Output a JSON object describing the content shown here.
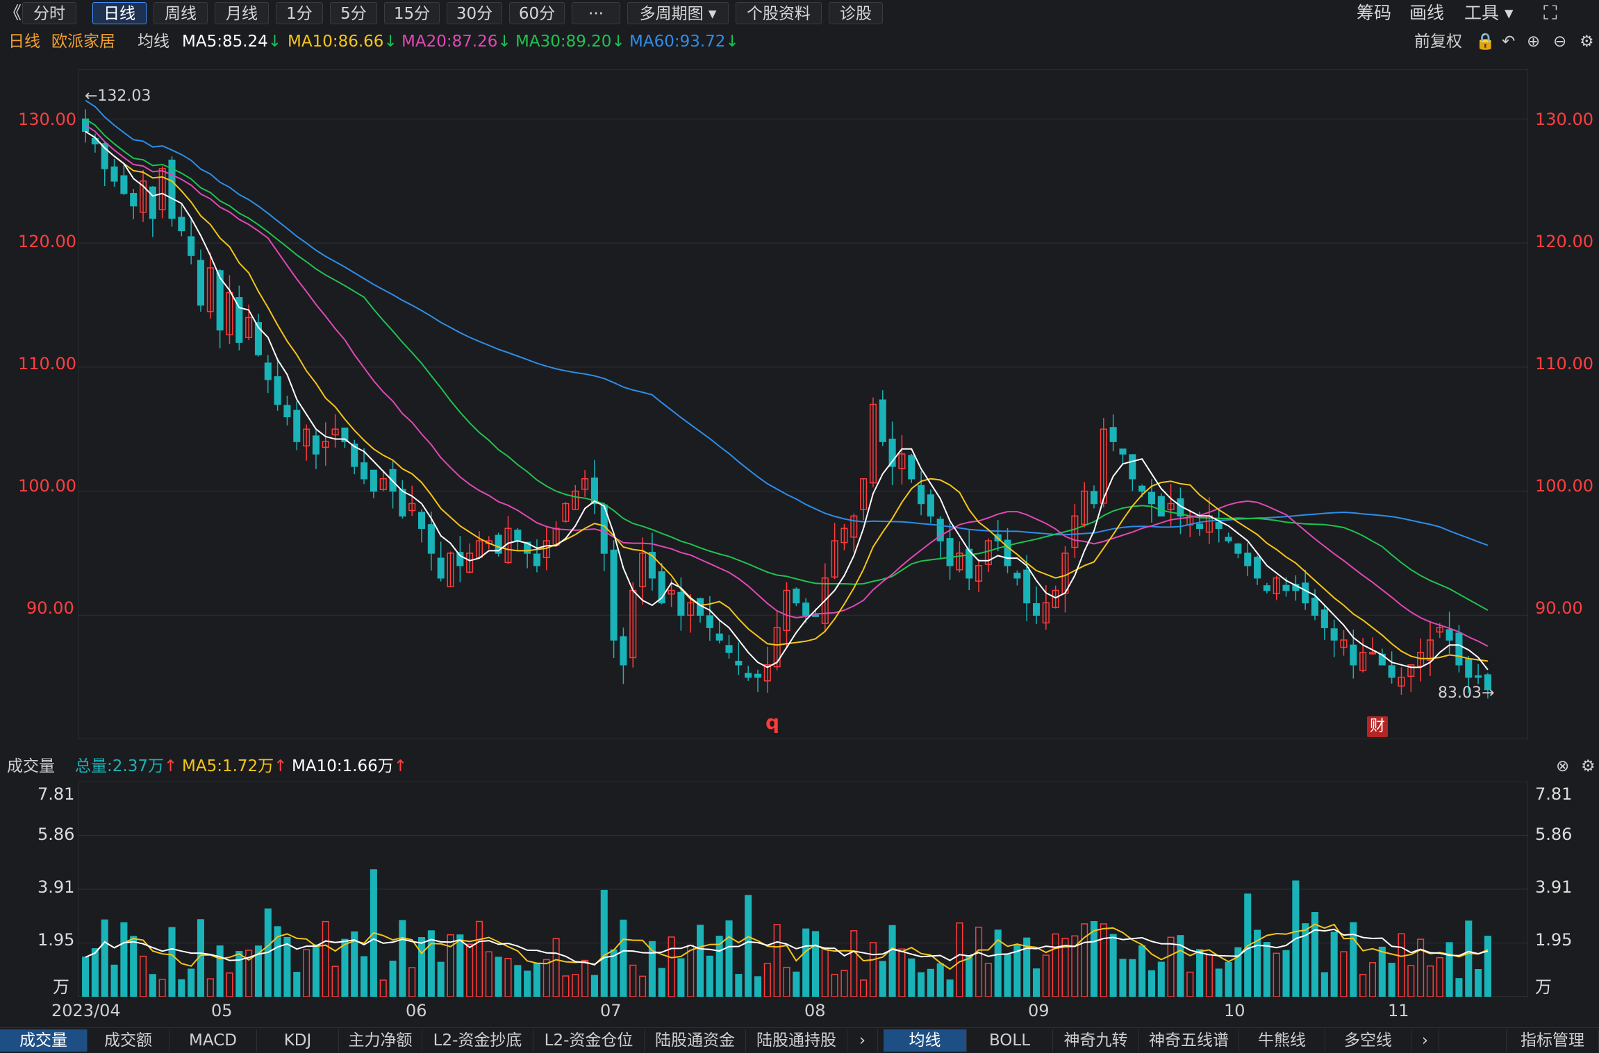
{
  "toolbar": {
    "back": "《",
    "periods": [
      "分时",
      "日线",
      "周线",
      "月线",
      "1分",
      "5分",
      "15分",
      "30分",
      "60分",
      "···",
      "多周期图",
      "个股资料",
      "诊股"
    ],
    "active_period": "日线",
    "right": [
      "筹码",
      "画线",
      "工具"
    ]
  },
  "info": {
    "period": "日线",
    "stock_name": "欧派家居",
    "ma_label": "均线",
    "ma5": "MA5:85.24",
    "ma10": "MA10:86.66",
    "ma20": "MA20:87.26",
    "ma30": "MA30:89.20",
    "ma60": "MA60:93.72",
    "adjust": "前复权"
  },
  "price_axis": {
    "ticks": [
      "130.00",
      "120.00",
      "110.00",
      "100.00",
      "90.00"
    ],
    "high_label": "←132.03",
    "low_label": "83.03→"
  },
  "markers": {
    "q": "q",
    "cai": "财"
  },
  "volume_info": {
    "label": "成交量",
    "total": "总量:2.37万",
    "ma5": "MA5:1.72万",
    "ma10": "MA10:1.66万"
  },
  "volume_axis": {
    "ticks": [
      "7.81",
      "5.86",
      "3.91",
      "1.95",
      "万"
    ]
  },
  "x_axis": {
    "labels": [
      "2023/04",
      "05",
      "06",
      "07",
      "08",
      "09",
      "10",
      "11"
    ]
  },
  "bottom_tabs_left": [
    "成交量",
    "成交额",
    "MACD",
    "KDJ",
    "主力净额",
    "L2-资金抄底",
    "L2-资金仓位",
    "陆股通资金",
    "陆股通持股"
  ],
  "bottom_tabs_right": [
    "均线",
    "BOLL",
    "神奇九转",
    "神奇五线谱",
    "牛熊线",
    "多空线"
  ],
  "bottom_right_button": "指标管理",
  "colors": {
    "up": "#ff3b3b",
    "down": "#19b3b8",
    "ma5": "#ffffff",
    "ma10": "#f5c518",
    "ma20": "#e048b5",
    "ma30": "#1fc24f",
    "ma60": "#2d8ee8"
  },
  "chart_data": {
    "type": "candlestick",
    "y_range": [
      80,
      134
    ],
    "closes": [
      129,
      128,
      126,
      125,
      124,
      123,
      125,
      122,
      126,
      122,
      121,
      119,
      115,
      118,
      113,
      116,
      112,
      114,
      111,
      109,
      107,
      106,
      104,
      105,
      103,
      104,
      105,
      104,
      102,
      101,
      100,
      101,
      100,
      98,
      99,
      97,
      95,
      93,
      95,
      94,
      95,
      96,
      96,
      95,
      97,
      96,
      95,
      94,
      96,
      97,
      99,
      100,
      101,
      99,
      95,
      88,
      86,
      92,
      95,
      93,
      91,
      92,
      90,
      91,
      90,
      89,
      88,
      87,
      86,
      85,
      85,
      86,
      89,
      92,
      91,
      90,
      90,
      93,
      96,
      97,
      98,
      101,
      107,
      104,
      102,
      103,
      101,
      99,
      98,
      96,
      94,
      95,
      93,
      94,
      96,
      96,
      94,
      93,
      91,
      90,
      91,
      92,
      95,
      98,
      100,
      99,
      105,
      104,
      103,
      101,
      100,
      99,
      98,
      99,
      98,
      98,
      97,
      98,
      97,
      96,
      95,
      94,
      93,
      92,
      93,
      92,
      92,
      91,
      90,
      89,
      88,
      88,
      86,
      87,
      87,
      86,
      85,
      85,
      86,
      87,
      88,
      89,
      88,
      86,
      85,
      85,
      84
    ]
  }
}
